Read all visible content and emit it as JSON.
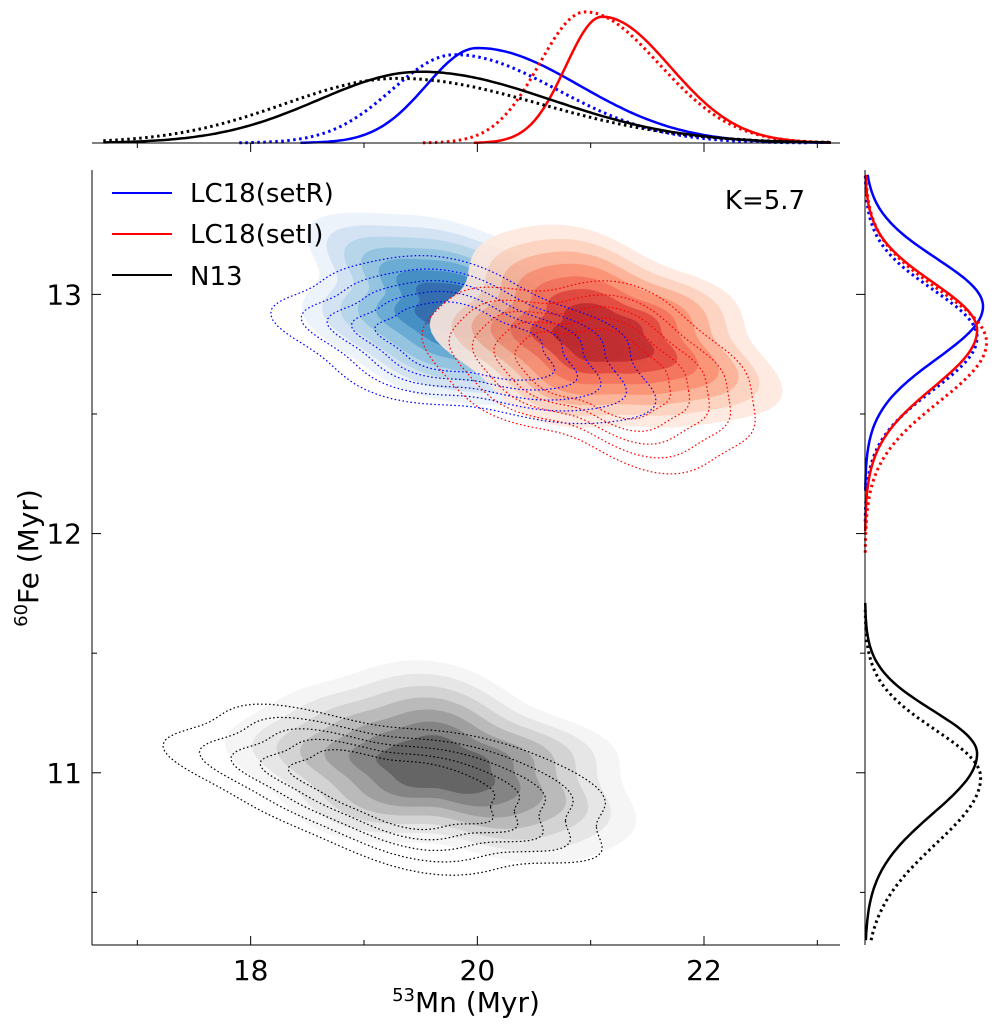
{
  "chart_data": {
    "type": "kde-jointplot",
    "annotation": "K=5.7",
    "xlabel": {
      "sup": "53",
      "text": "Mn (Myr)"
    },
    "ylabel": {
      "sup": "60",
      "text": "Fe (Myr)"
    },
    "xlim": [
      16.6,
      23.2
    ],
    "ylim": [
      10.28,
      13.52
    ],
    "xticks": [
      18,
      20,
      22
    ],
    "xticks_minor": [
      17,
      19,
      21,
      23
    ],
    "yticks": [
      11,
      12,
      13
    ],
    "yticks_minor": [
      10.5,
      11.5,
      12.5
    ],
    "legend": {
      "placement": "top-left",
      "entries": [
        {
          "label": "LC18(setR)",
          "color": "#0000ff"
        },
        {
          "label": "LC18(setI)",
          "color": "#ff0000"
        },
        {
          "label": "N13",
          "color": "#000000"
        }
      ]
    },
    "series": [
      {
        "name": "LC18(setR)",
        "color": "#0000ff",
        "palette": "blues",
        "filled": {
          "cx": 19.85,
          "cy": 12.93,
          "sx": 0.62,
          "sy": 0.17,
          "rho": -0.35
        },
        "dotted": {
          "cx": 19.9,
          "cy": 12.8,
          "sx": 0.72,
          "sy": 0.15,
          "rho": -0.45
        },
        "marginal_x_solid": {
          "peak": 20.0,
          "sl": 0.45,
          "sr": 0.9,
          "amp": 1.0
        },
        "marginal_x_dotted": {
          "peak": 19.8,
          "sl": 0.55,
          "sr": 0.9,
          "amp": 0.93
        },
        "marginal_y_solid": {
          "peak": 12.95,
          "sl": 0.22,
          "sr": 0.2,
          "amp": 1.0
        },
        "marginal_y_dotted": {
          "peak": 12.82,
          "sl": 0.22,
          "sr": 0.2,
          "amp": 0.95
        }
      },
      {
        "name": "LC18(setI)",
        "color": "#ff0000",
        "palette": "reds",
        "filled": {
          "cx": 21.1,
          "cy": 12.83,
          "sx": 0.62,
          "sy": 0.18,
          "rho": -0.3
        },
        "dotted": {
          "cx": 21.05,
          "cy": 12.68,
          "sx": 0.65,
          "sy": 0.17,
          "rho": -0.4
        },
        "marginal_x_solid": {
          "peak": 21.1,
          "sl": 0.32,
          "sr": 0.6,
          "amp": 1.33
        },
        "marginal_x_dotted": {
          "peak": 20.95,
          "sl": 0.4,
          "sr": 0.65,
          "amp": 1.38
        },
        "marginal_y_solid": {
          "peak": 12.85,
          "sl": 0.24,
          "sr": 0.2,
          "amp": 0.95
        },
        "marginal_y_dotted": {
          "peak": 12.8,
          "sl": 0.25,
          "sr": 0.22,
          "amp": 1.03
        }
      },
      {
        "name": "N13",
        "color": "#000000",
        "palette": "greys",
        "filled": {
          "cx": 19.65,
          "cy": 11.03,
          "sx": 0.75,
          "sy": 0.17,
          "rho": -0.3
        },
        "dotted": {
          "cx": 19.3,
          "cy": 10.93,
          "sx": 0.85,
          "sy": 0.15,
          "rho": -0.5
        },
        "marginal_x_solid": {
          "peak": 19.5,
          "sl": 0.9,
          "sr": 1.15,
          "amp": 0.75
        },
        "marginal_x_dotted": {
          "peak": 19.3,
          "sl": 1.0,
          "sr": 1.25,
          "amp": 0.68
        },
        "marginal_y_solid": {
          "peak": 11.08,
          "sl": 0.25,
          "sr": 0.18,
          "amp": 0.95
        },
        "marginal_y_dotted": {
          "peak": 10.98,
          "sl": 0.28,
          "sr": 0.2,
          "amp": 0.98
        }
      }
    ]
  }
}
